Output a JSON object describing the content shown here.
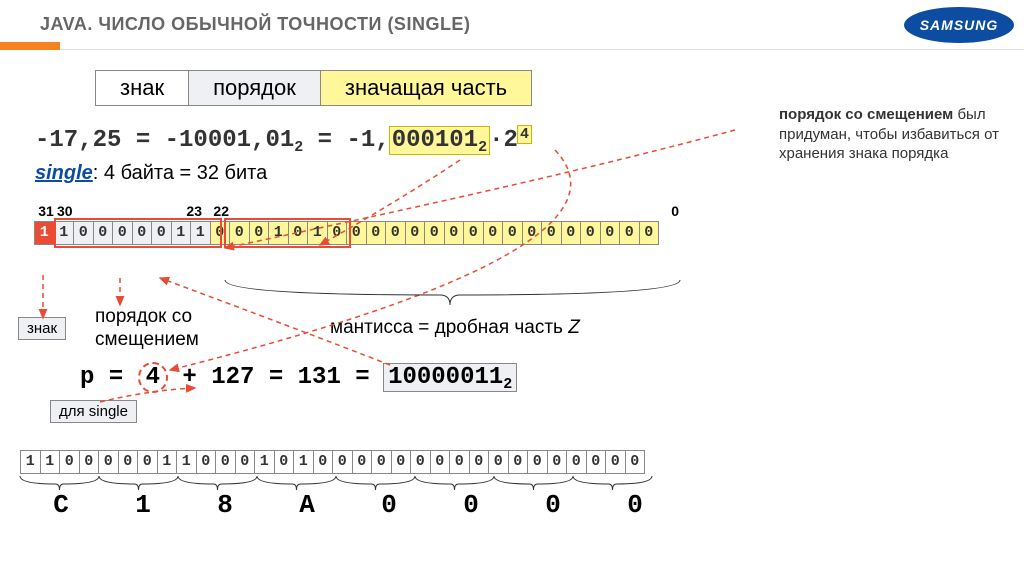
{
  "header": {
    "title": "JAVA. ЧИСЛО ОБЫЧНОЙ ТОЧНОСТИ (SINGLE)",
    "logo": "SAMSUNG"
  },
  "legend": {
    "sign": "знак",
    "exp": "порядок",
    "mant": "значащая часть"
  },
  "sidenote": {
    "bold": "порядок со смещением",
    "rest": " был придуман, чтобы избавиться от хранения знака порядка"
  },
  "equation": {
    "lhs": "-17,25 = -10001,01",
    "sub1": "2",
    "mid": " = -1,",
    "mant": "000101",
    "sub2": "2",
    "mult": "·2",
    "exp": "4"
  },
  "single_line": {
    "kw": "single",
    "rest": ": 4 байта = 32 бита"
  },
  "bitpos": {
    "p31": "31",
    "p30": "30",
    "p23": "23",
    "p22": "22",
    "p0": "0"
  },
  "bits": {
    "sign": [
      "1"
    ],
    "exp": [
      "1",
      "0",
      "0",
      "0",
      "0",
      "0",
      "1",
      "1"
    ],
    "mant": [
      "0",
      "0",
      "0",
      "1",
      "0",
      "1",
      "0",
      "0",
      "0",
      "0",
      "0",
      "0",
      "0",
      "0",
      "0",
      "0",
      "0",
      "0",
      "0",
      "0",
      "0",
      "0",
      "0"
    ]
  },
  "labels": {
    "sign_tag": "знак",
    "exp_label1": "порядок со",
    "exp_label2": "смещением",
    "mant_label": "мантисса = дробная часть",
    "mant_var": "Z"
  },
  "p_equation": {
    "pre": "p = ",
    "four": "4",
    "mid": " + 127 = 131 = ",
    "bin": "10000011",
    "sub": "2"
  },
  "single_tag": "для single",
  "bits2": [
    "1",
    "1",
    "0",
    "0",
    "0",
    "0",
    "0",
    "1",
    "1",
    "0",
    "0",
    "0",
    "1",
    "0",
    "1",
    "0",
    "0",
    "0",
    "0",
    "0",
    "0",
    "0",
    "0",
    "0",
    "0",
    "0",
    "0",
    "0",
    "0",
    "0",
    "0",
    "0"
  ],
  "hex": [
    "C",
    "1",
    "8",
    "A",
    "0",
    "0",
    "0",
    "0"
  ],
  "colors": {
    "accent": "#f58220",
    "red": "#e94b35",
    "yellow": "#fff799",
    "blue": "#0c4da2",
    "grey": "#eef0f4"
  }
}
